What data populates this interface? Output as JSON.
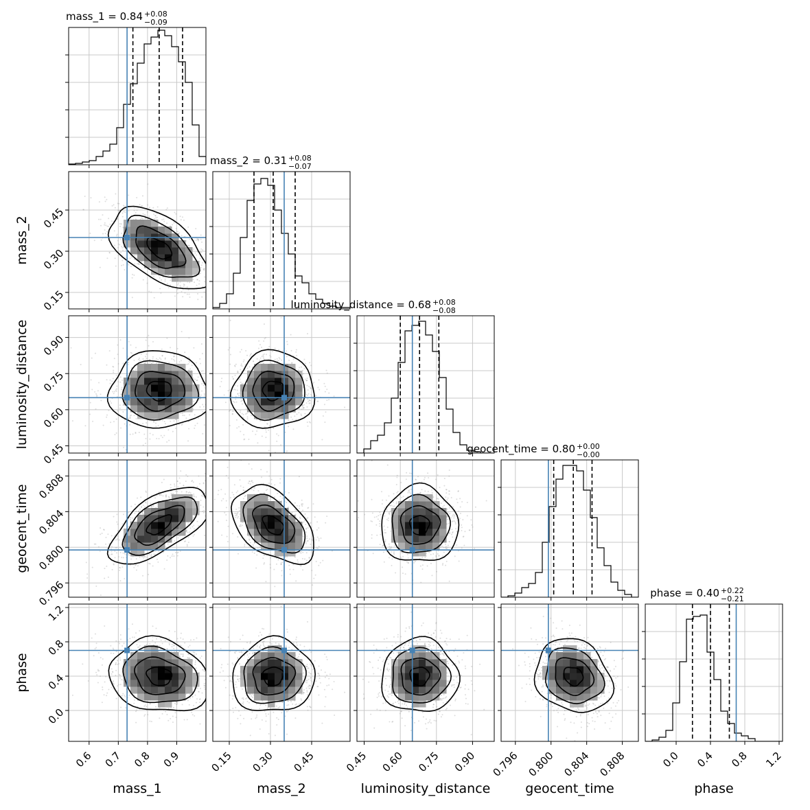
{
  "chart_data": {
    "type": "corner",
    "params": [
      "mass_1",
      "mass_2",
      "luminosity_distance",
      "geocent_time",
      "phase"
    ],
    "axis_labels": [
      "mass_1",
      "mass_2",
      "luminosity_distance",
      "geocent_time",
      "phase"
    ],
    "ranges": [
      [
        0.53,
        1.0
      ],
      [
        0.09,
        0.59
      ],
      [
        0.42,
        0.99
      ],
      [
        0.7944,
        0.8098
      ],
      [
        -0.36,
        1.24
      ]
    ],
    "ticks": [
      [
        0.6,
        0.7,
        0.8,
        0.9
      ],
      [
        0.15,
        0.3,
        0.45
      ],
      [
        0.45,
        0.6,
        0.75,
        0.9
      ],
      [
        0.796,
        0.8,
        0.804,
        0.808
      ],
      [
        0.0,
        0.4,
        0.8,
        1.2
      ]
    ],
    "tick_labels": [
      [
        "0.6",
        "0.7",
        "0.8",
        "0.9"
      ],
      [
        "0.15",
        "0.30",
        "0.45"
      ],
      [
        "0.45",
        "0.60",
        "0.75",
        "0.90"
      ],
      [
        "0.796",
        "0.800",
        "0.804",
        "0.808"
      ],
      [
        "0.0",
        "0.4",
        "0.8",
        "1.2"
      ]
    ],
    "titles": [
      {
        "label": "mass_1 = 0.84",
        "plus": "+0.08",
        "minus": "−0.09"
      },
      {
        "label": "mass_2 = 0.31",
        "plus": "+0.08",
        "minus": "−0.07"
      },
      {
        "label": "luminosity_distance = 0.68",
        "plus": "+0.08",
        "minus": "−0.08"
      },
      {
        "label": "geocent_time = 0.80",
        "plus": "+0.00",
        "minus": "−0.00"
      },
      {
        "label": "phase = 0.40",
        "plus": "+0.22",
        "minus": "−0.21"
      }
    ],
    "truths": [
      0.73,
      0.35,
      0.65,
      0.7997,
      0.7
    ],
    "medians": [
      0.84,
      0.31,
      0.68,
      0.8025,
      0.4
    ],
    "quantile_lo": [
      0.75,
      0.24,
      0.6,
      0.8003,
      0.19
    ],
    "quantile_hi": [
      0.92,
      0.39,
      0.76,
      0.8046,
      0.62
    ],
    "histograms": [
      {
        "edges_from": 0.53,
        "bin_width": 0.0235,
        "counts": [
          0.005,
          0.01,
          0.02,
          0.03,
          0.06,
          0.1,
          0.15,
          0.27,
          0.44,
          0.59,
          0.74,
          0.88,
          0.93,
          0.98,
          0.94,
          0.86,
          0.75,
          0.6,
          0.29,
          0.06
        ]
      },
      {
        "edges_from": 0.09,
        "bin_width": 0.025,
        "counts": [
          0.01,
          0.04,
          0.11,
          0.26,
          0.52,
          0.79,
          0.91,
          0.95,
          0.9,
          0.72,
          0.55,
          0.4,
          0.24,
          0.19,
          0.11,
          0.07,
          0.04,
          0.02,
          0.01,
          0.01
        ]
      },
      {
        "edges_from": 0.42,
        "bin_width": 0.0285,
        "counts": [
          0.0,
          0.03,
          0.09,
          0.13,
          0.22,
          0.4,
          0.66,
          0.89,
          0.93,
          0.96,
          0.86,
          0.74,
          0.55,
          0.32,
          0.15,
          0.06,
          0.02,
          0.01,
          0.0,
          0.0
        ]
      },
      {
        "edges_from": 0.7944,
        "bin_width": 0.00077,
        "counts": [
          0.0,
          0.01,
          0.03,
          0.07,
          0.1,
          0.18,
          0.4,
          0.66,
          0.86,
          0.96,
          0.96,
          0.92,
          0.78,
          0.58,
          0.36,
          0.23,
          0.11,
          0.05,
          0.02,
          0.0
        ]
      },
      {
        "edges_from": -0.36,
        "bin_width": 0.08,
        "counts": [
          0.0,
          0.01,
          0.03,
          0.08,
          0.28,
          0.58,
          0.89,
          0.91,
          0.92,
          0.65,
          0.45,
          0.22,
          0.13,
          0.06,
          0.04,
          0.02,
          0.0,
          0.0,
          0.0,
          0.0
        ]
      }
    ],
    "correlations": {
      "1-0": -0.55,
      "2-0": 0.0,
      "2-1": 0.05,
      "3-0": 0.62,
      "3-1": -0.45,
      "3-2": 0.0,
      "4-0": -0.15,
      "4-1": 0.05,
      "4-2": 0.0,
      "4-3": -0.18
    },
    "grid": true,
    "colors": {
      "truth": "#4682b4",
      "contour": "#000000",
      "hist": "#000000",
      "grid": "#c8c8c8",
      "points": "#9e9e9e"
    }
  }
}
